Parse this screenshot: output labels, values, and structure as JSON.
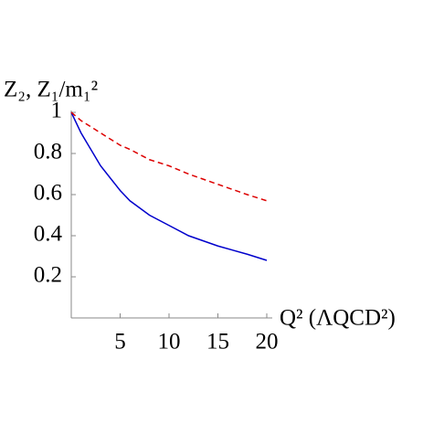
{
  "chart_data": {
    "type": "line",
    "y_label": "Z₂, Z₁/m₁²",
    "x_label": "Q² (ΛQCD²)",
    "x": [
      0,
      1,
      2,
      3,
      4,
      5,
      6,
      8,
      10,
      12,
      15,
      18,
      20
    ],
    "series": [
      {
        "color": "#0000cc",
        "dash": false,
        "values": [
          1,
          0.9,
          0.82,
          0.74,
          0.68,
          0.62,
          0.57,
          0.5,
          0.45,
          0.4,
          0.35,
          0.31,
          0.28
        ]
      },
      {
        "color": "#dd0000",
        "dash": true,
        "values": [
          1,
          0.96,
          0.93,
          0.9,
          0.87,
          0.84,
          0.82,
          0.77,
          0.74,
          0.7,
          0.65,
          0.6,
          0.57
        ]
      }
    ],
    "xlim": [
      0,
      20
    ],
    "ylim": [
      0,
      1
    ],
    "xticks": [
      5,
      10,
      15,
      20
    ],
    "yticks": [
      0.2,
      0.4,
      0.6,
      0.8,
      1
    ]
  }
}
